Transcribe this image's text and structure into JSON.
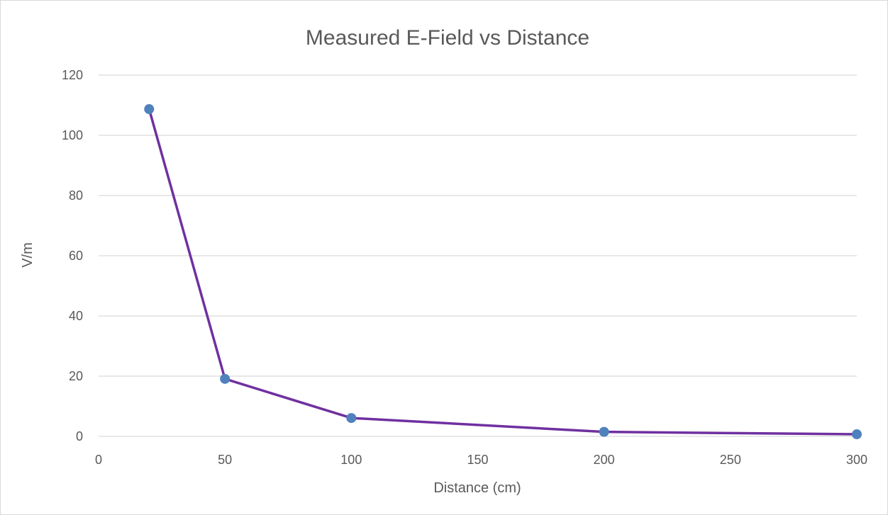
{
  "chart_data": {
    "type": "line",
    "title": "Measured E-Field vs Distance",
    "xlabel": "Distance (cm)",
    "ylabel": "V/m",
    "xlim": [
      0,
      300
    ],
    "ylim": [
      0,
      120
    ],
    "x_ticks": [
      0,
      50,
      100,
      150,
      200,
      250,
      300
    ],
    "y_ticks": [
      0,
      20,
      40,
      60,
      80,
      100,
      120
    ],
    "grid": "horizontal",
    "legend": "none",
    "series": [
      {
        "x": [
          20,
          50,
          100,
          200,
          300
        ],
        "y": [
          108.7,
          19.1,
          6.1,
          1.5,
          0.7
        ],
        "line_color": "#7030a0",
        "marker_color": "#4f81bd"
      }
    ],
    "colors": {
      "gridline": "#d9d9d9",
      "text": "#595959"
    }
  }
}
